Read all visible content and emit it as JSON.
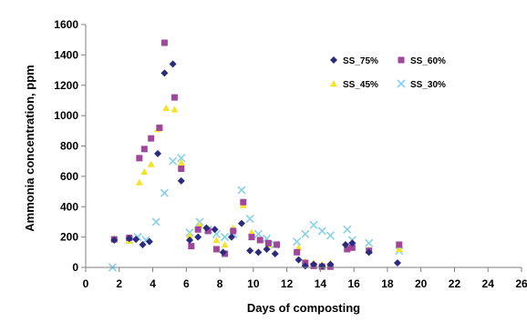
{
  "chart_data": {
    "type": "scatter",
    "title": "",
    "xlabel": "Days of composting",
    "ylabel": "Ammonia concentration, ppm",
    "xlim": [
      0,
      26
    ],
    "ylim": [
      0,
      1600
    ],
    "xticks": [
      0,
      2,
      4,
      6,
      8,
      10,
      12,
      14,
      16,
      18,
      20,
      22,
      24,
      26
    ],
    "yticks": [
      0,
      200,
      400,
      600,
      800,
      1000,
      1200,
      1400,
      1600
    ],
    "grid": false,
    "legend_position": "top-right",
    "series": [
      {
        "name": "SS_75%",
        "marker": "diamond",
        "color": "#2b2a7e",
        "points": [
          [
            1.7,
            180
          ],
          [
            2.6,
            190
          ],
          [
            3.0,
            185
          ],
          [
            3.4,
            150
          ],
          [
            3.8,
            170
          ],
          [
            4.3,
            750
          ],
          [
            4.7,
            1280
          ],
          [
            5.2,
            1340
          ],
          [
            5.7,
            570
          ],
          [
            6.2,
            180
          ],
          [
            6.7,
            200
          ],
          [
            7.2,
            260
          ],
          [
            7.7,
            250
          ],
          [
            8.2,
            100
          ],
          [
            8.7,
            200
          ],
          [
            9.3,
            290
          ],
          [
            9.8,
            110
          ],
          [
            10.3,
            100
          ],
          [
            10.8,
            120
          ],
          [
            11.3,
            90
          ],
          [
            12.7,
            50
          ],
          [
            13.1,
            10
          ],
          [
            13.6,
            20
          ],
          [
            14.1,
            10
          ],
          [
            14.6,
            20
          ],
          [
            15.5,
            150
          ],
          [
            15.9,
            160
          ],
          [
            16.9,
            100
          ],
          [
            18.6,
            30
          ]
        ]
      },
      {
        "name": "SS_60%",
        "marker": "square",
        "color": "#a0479c",
        "points": [
          [
            1.7,
            185
          ],
          [
            2.6,
            195
          ],
          [
            3.2,
            720
          ],
          [
            3.5,
            780
          ],
          [
            3.9,
            850
          ],
          [
            4.4,
            920
          ],
          [
            4.7,
            1480
          ],
          [
            5.3,
            1120
          ],
          [
            5.7,
            650
          ],
          [
            6.3,
            140
          ],
          [
            6.7,
            250
          ],
          [
            7.3,
            240
          ],
          [
            7.8,
            120
          ],
          [
            8.3,
            90
          ],
          [
            8.8,
            240
          ],
          [
            9.4,
            430
          ],
          [
            9.9,
            200
          ],
          [
            10.4,
            180
          ],
          [
            10.9,
            160
          ],
          [
            11.4,
            150
          ],
          [
            12.6,
            100
          ],
          [
            13.1,
            30
          ],
          [
            13.6,
            10
          ],
          [
            14.1,
            5
          ],
          [
            14.6,
            5
          ],
          [
            15.6,
            120
          ],
          [
            15.9,
            130
          ],
          [
            16.9,
            110
          ],
          [
            18.7,
            150
          ]
        ]
      },
      {
        "name": "SS_45%",
        "marker": "triangle",
        "color": "#f3e427",
        "points": [
          [
            1.7,
            190
          ],
          [
            2.6,
            175
          ],
          [
            3.2,
            560
          ],
          [
            3.5,
            630
          ],
          [
            3.9,
            680
          ],
          [
            4.3,
            910
          ],
          [
            4.8,
            1050
          ],
          [
            5.3,
            1040
          ],
          [
            5.7,
            690
          ],
          [
            6.2,
            210
          ],
          [
            6.8,
            280
          ],
          [
            7.3,
            260
          ],
          [
            7.8,
            180
          ],
          [
            8.3,
            150
          ],
          [
            8.8,
            260
          ],
          [
            9.4,
            410
          ],
          [
            9.9,
            230
          ],
          [
            10.4,
            180
          ],
          [
            10.9,
            150
          ],
          [
            11.4,
            150
          ],
          [
            12.7,
            130
          ],
          [
            13.1,
            40
          ],
          [
            13.6,
            30
          ],
          [
            14.1,
            20
          ],
          [
            14.6,
            30
          ],
          [
            15.6,
            140
          ],
          [
            15.9,
            150
          ],
          [
            16.9,
            120
          ],
          [
            18.7,
            120
          ]
        ]
      },
      {
        "name": "SS_30%",
        "marker": "x",
        "color": "#86d1e8",
        "points": [
          [
            1.6,
            0
          ],
          [
            2.6,
            180
          ],
          [
            3.1,
            200
          ],
          [
            3.6,
            180
          ],
          [
            4.2,
            300
          ],
          [
            4.7,
            490
          ],
          [
            5.2,
            700
          ],
          [
            5.7,
            720
          ],
          [
            6.2,
            230
          ],
          [
            6.8,
            300
          ],
          [
            7.3,
            250
          ],
          [
            7.8,
            220
          ],
          [
            8.3,
            200
          ],
          [
            8.8,
            220
          ],
          [
            9.3,
            510
          ],
          [
            9.8,
            320
          ],
          [
            10.3,
            220
          ],
          [
            10.8,
            190
          ],
          [
            11.3,
            150
          ],
          [
            12.6,
            170
          ],
          [
            13.1,
            220
          ],
          [
            13.6,
            280
          ],
          [
            14.1,
            240
          ],
          [
            14.6,
            210
          ],
          [
            15.6,
            250
          ],
          [
            15.9,
            180
          ],
          [
            16.9,
            160
          ],
          [
            18.7,
            110
          ]
        ]
      }
    ]
  }
}
